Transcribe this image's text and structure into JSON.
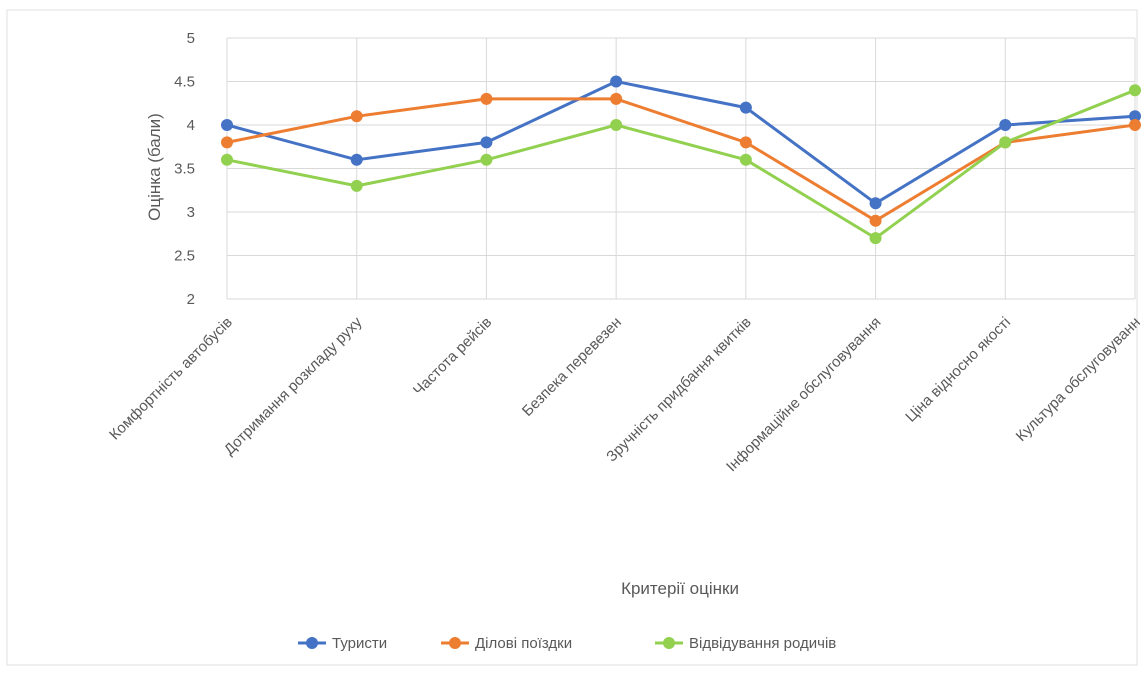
{
  "chart_data": {
    "type": "line",
    "xlabel": "Критерії оцінки",
    "ylabel": "Оцінка (бали)",
    "ylim": [
      2,
      5
    ],
    "yticks": [
      2,
      2.5,
      3,
      3.5,
      4,
      4.5,
      5
    ],
    "grid": true,
    "legend_position": "bottom",
    "categories": [
      "Комфортність автобусів",
      "Дотримання розкладу руху",
      "Частота рейсів",
      "Безпека перевезен",
      "Зручність придбання квитків",
      "Інформаційне обслуговування",
      "Ціна відносно якості",
      "Культура обслуговуванн"
    ],
    "series": [
      {
        "name": "Туристи",
        "color": "#4472c4",
        "values": [
          4.0,
          3.6,
          3.8,
          4.5,
          4.2,
          3.1,
          4.0,
          4.1
        ]
      },
      {
        "name": "Ділові поїздки",
        "color": "#ed7d31",
        "values": [
          3.8,
          4.1,
          4.3,
          4.3,
          3.8,
          2.9,
          3.8,
          4.0
        ]
      },
      {
        "name": "Відвідування родичів",
        "color": "#92d050",
        "values": [
          3.6,
          3.3,
          3.6,
          4.0,
          3.6,
          2.7,
          3.8,
          4.4
        ]
      }
    ]
  }
}
